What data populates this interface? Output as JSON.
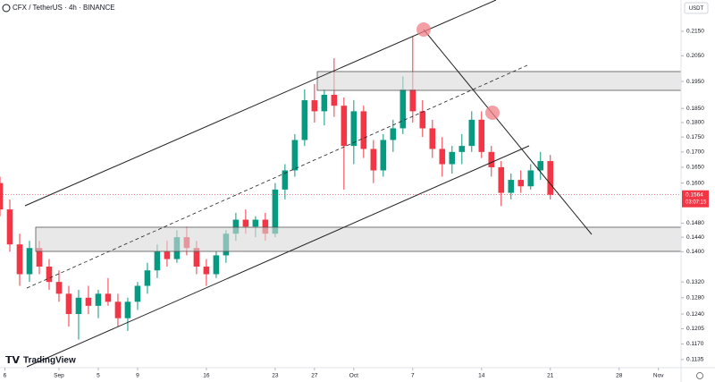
{
  "chart_data": {
    "type": "candlestick",
    "title": "CFX / TetherUS · 4h · BINANCE",
    "currency": "USDT",
    "branding": "TradingView",
    "x": [
      -6,
      -5,
      -4,
      -3,
      -2,
      -1,
      0,
      1,
      2,
      3,
      4,
      5,
      6,
      7,
      8,
      9,
      10,
      11,
      12,
      13,
      14,
      15,
      16,
      17,
      18,
      19,
      20,
      21,
      22,
      23,
      24,
      25,
      26,
      27,
      28,
      29,
      30,
      31,
      32,
      33,
      34,
      35,
      36,
      37,
      38,
      39,
      40,
      41,
      42,
      43,
      44,
      45,
      46,
      47,
      48,
      49,
      50
    ],
    "open": [
      0.16,
      0.152,
      0.142,
      0.134,
      0.141,
      0.136,
      0.132,
      0.129,
      0.124,
      0.128,
      0.126,
      0.129,
      0.127,
      0.123,
      0.127,
      0.131,
      0.135,
      0.14,
      0.138,
      0.144,
      0.141,
      0.136,
      0.134,
      0.139,
      0.145,
      0.149,
      0.147,
      0.149,
      0.145,
      0.158,
      0.164,
      0.174,
      0.188,
      0.184,
      0.19,
      0.186,
      0.172,
      0.184,
      0.171,
      0.164,
      0.174,
      0.178,
      0.192,
      0.184,
      0.178,
      0.171,
      0.166,
      0.17,
      0.172,
      0.181,
      0.17,
      0.165,
      0.157,
      0.161,
      0.159,
      0.164,
      0.167
    ],
    "high": [
      0.162,
      0.155,
      0.145,
      0.143,
      0.143,
      0.138,
      0.135,
      0.131,
      0.13,
      0.131,
      0.13,
      0.133,
      0.129,
      0.128,
      0.132,
      0.137,
      0.142,
      0.143,
      0.146,
      0.147,
      0.143,
      0.138,
      0.14,
      0.146,
      0.151,
      0.152,
      0.15,
      0.151,
      0.16,
      0.166,
      0.176,
      0.192,
      0.194,
      0.192,
      0.204,
      0.189,
      0.188,
      0.186,
      0.174,
      0.176,
      0.181,
      0.197,
      0.213,
      0.188,
      0.181,
      0.175,
      0.172,
      0.176,
      0.184,
      0.184,
      0.172,
      0.167,
      0.163,
      0.164,
      0.166,
      0.17,
      0.169
    ],
    "low": [
      0.15,
      0.14,
      0.131,
      0.132,
      0.134,
      0.13,
      0.127,
      0.121,
      0.118,
      0.124,
      0.123,
      0.126,
      0.121,
      0.12,
      0.125,
      0.129,
      0.133,
      0.136,
      0.137,
      0.139,
      0.134,
      0.131,
      0.133,
      0.137,
      0.143,
      0.145,
      0.144,
      0.143,
      0.144,
      0.155,
      0.162,
      0.172,
      0.18,
      0.179,
      0.182,
      0.158,
      0.166,
      0.168,
      0.16,
      0.162,
      0.17,
      0.176,
      0.18,
      0.175,
      0.168,
      0.162,
      0.163,
      0.166,
      0.17,
      0.168,
      0.162,
      0.153,
      0.155,
      0.157,
      0.158,
      0.161,
      0.155
    ],
    "close": [
      0.152,
      0.142,
      0.134,
      0.141,
      0.136,
      0.132,
      0.129,
      0.124,
      0.128,
      0.126,
      0.129,
      0.127,
      0.123,
      0.127,
      0.131,
      0.135,
      0.14,
      0.138,
      0.144,
      0.141,
      0.136,
      0.134,
      0.139,
      0.145,
      0.149,
      0.147,
      0.149,
      0.145,
      0.158,
      0.164,
      0.174,
      0.188,
      0.184,
      0.19,
      0.186,
      0.172,
      0.184,
      0.171,
      0.164,
      0.174,
      0.178,
      0.192,
      0.184,
      0.178,
      0.171,
      0.166,
      0.17,
      0.172,
      0.181,
      0.17,
      0.165,
      0.157,
      0.161,
      0.159,
      0.164,
      0.167,
      0.1564
    ],
    "up_color": "#089981",
    "down_color": "#f23645",
    "log_scale": true,
    "ylim": [
      0.1119,
      0.2285
    ],
    "yticks": [
      {
        "value": 0.215,
        "label": "0.2150"
      },
      {
        "value": 0.205,
        "label": "0.2050"
      },
      {
        "value": 0.195,
        "label": "0.1950"
      },
      {
        "value": 0.185,
        "label": "0.1850"
      },
      {
        "value": 0.18,
        "label": "0.1800"
      },
      {
        "value": 0.175,
        "label": "0.1750"
      },
      {
        "value": 0.17,
        "label": "0.1700"
      },
      {
        "value": 0.165,
        "label": "0.1650"
      },
      {
        "value": 0.16,
        "label": "0.1600"
      },
      {
        "value": 0.148,
        "label": "0.1480"
      },
      {
        "value": 0.144,
        "label": "0.1440"
      },
      {
        "value": 0.14,
        "label": "0.1400"
      },
      {
        "value": 0.132,
        "label": "0.1320"
      },
      {
        "value": 0.128,
        "label": "0.1280"
      },
      {
        "value": 0.124,
        "label": "0.1240"
      },
      {
        "value": 0.1205,
        "label": "0.1205"
      },
      {
        "value": 0.117,
        "label": "0.1170"
      },
      {
        "value": 0.1135,
        "label": "0.1135"
      }
    ],
    "xlim": [
      -6,
      63.3
    ],
    "xticks": [
      {
        "value": -5.5,
        "label": "6"
      },
      {
        "value": 0,
        "label": "Sep"
      },
      {
        "value": 4,
        "label": "5"
      },
      {
        "value": 8,
        "label": "9"
      },
      {
        "value": 15,
        "label": "16"
      },
      {
        "value": 22,
        "label": "23"
      },
      {
        "value": 26,
        "label": "27"
      },
      {
        "value": 30,
        "label": "Oct"
      },
      {
        "value": 36,
        "label": "7"
      },
      {
        "value": 43,
        "label": "14"
      },
      {
        "value": 50,
        "label": "21"
      },
      {
        "value": 57,
        "label": "28"
      },
      {
        "value": 61,
        "label": "Nov"
      }
    ],
    "current_price": 0.1564,
    "countdown": "03:07:15"
  }
}
